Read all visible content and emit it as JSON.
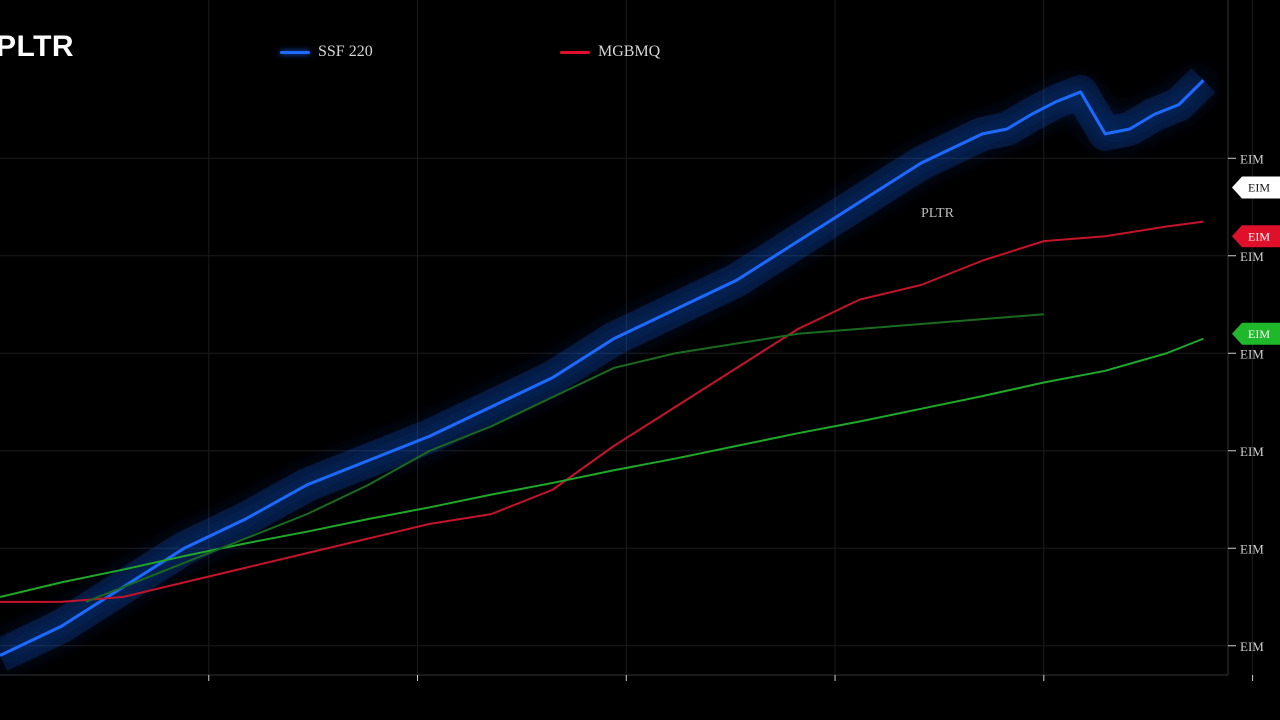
{
  "chart_data": {
    "type": "line",
    "title": "PLTR",
    "legend": {
      "placement": "top",
      "entries": [
        {
          "name": "SSF 220",
          "color": "#1e6bff"
        },
        {
          "name": "MGBMQ",
          "color": "#e0102a"
        }
      ]
    },
    "grid": true,
    "xlim": [
      0,
      10
    ],
    "ylim": [
      0,
      6
    ],
    "x_ticks": [
      1,
      2,
      3,
      4,
      5,
      6
    ],
    "x_tick_labels": [
      "",
      "",
      "",
      "",
      "",
      ""
    ],
    "y_ticks": [
      0.3,
      1.3,
      2.3,
      3.3,
      4.3,
      5.3
    ],
    "y_tick_labels": [
      "EIM",
      "EIM",
      "EIM",
      "EIM",
      "EIM",
      "EIM"
    ],
    "annotations": [
      {
        "text": "PLTR",
        "x": 7.5,
        "y": 4.7
      }
    ],
    "series": [
      {
        "color": "#1e6bff",
        "glow": true,
        "x": [
          0,
          0.5,
          1,
          1.5,
          2,
          2.5,
          3,
          3.5,
          4,
          4.5,
          5,
          5.5,
          6,
          6.5,
          7,
          7.5,
          8,
          8.2,
          8.4,
          8.6,
          8.8,
          9,
          9.2,
          9.4,
          9.6,
          9.8
        ],
        "values": [
          0.2,
          0.5,
          0.9,
          1.3,
          1.6,
          1.95,
          2.2,
          2.45,
          2.75,
          3.05,
          3.45,
          3.75,
          4.05,
          4.45,
          4.85,
          5.25,
          5.55,
          5.6,
          5.75,
          5.88,
          5.98,
          5.55,
          5.6,
          5.75,
          5.85,
          6.1
        ]
      },
      {
        "color": "#c4142a",
        "x": [
          0,
          0.5,
          1,
          1.5,
          2,
          2.5,
          3,
          3.5,
          4,
          4.5,
          5,
          5.5,
          6,
          6.5,
          7,
          7.5,
          8,
          8.5,
          9,
          9.5,
          9.8
        ],
        "values": [
          0.75,
          0.75,
          0.8,
          0.95,
          1.1,
          1.25,
          1.4,
          1.55,
          1.65,
          1.9,
          2.35,
          2.75,
          3.15,
          3.55,
          3.85,
          4.0,
          4.25,
          4.45,
          4.5,
          4.6,
          4.65
        ]
      },
      {
        "color": "#1fa82a",
        "x": [
          0,
          0.5,
          1,
          1.5,
          2,
          2.5,
          3,
          3.5,
          4,
          4.5,
          5,
          5.5,
          6,
          6.5,
          7,
          7.5,
          8,
          8.5,
          9,
          9.5,
          9.8
        ],
        "values": [
          0.8,
          0.95,
          1.08,
          1.22,
          1.35,
          1.47,
          1.6,
          1.72,
          1.85,
          1.97,
          2.1,
          2.22,
          2.35,
          2.48,
          2.6,
          2.73,
          2.86,
          3.0,
          3.12,
          3.3,
          3.45
        ]
      },
      {
        "color": "#1a6a1f",
        "x": [
          0.7,
          1,
          1.5,
          2,
          2.5,
          3,
          3.5,
          4,
          4.5,
          5,
          5.5,
          6,
          6.5,
          7,
          7.5,
          8,
          8.5
        ],
        "values": [
          0.75,
          0.9,
          1.15,
          1.4,
          1.65,
          1.95,
          2.3,
          2.55,
          2.85,
          3.15,
          3.3,
          3.4,
          3.5,
          3.55,
          3.6,
          3.65,
          3.7
        ]
      }
    ],
    "right_tags": [
      {
        "text": "EIM",
        "color": "#ffffff",
        "text_color": "#111111",
        "y": 5.0
      },
      {
        "text": "EIM",
        "color": "#e0102a",
        "text_color": "#ffffff",
        "y": 4.5
      },
      {
        "text": "EIM",
        "color": "#1fb82a",
        "text_color": "#ffffff",
        "y": 3.5
      }
    ]
  }
}
